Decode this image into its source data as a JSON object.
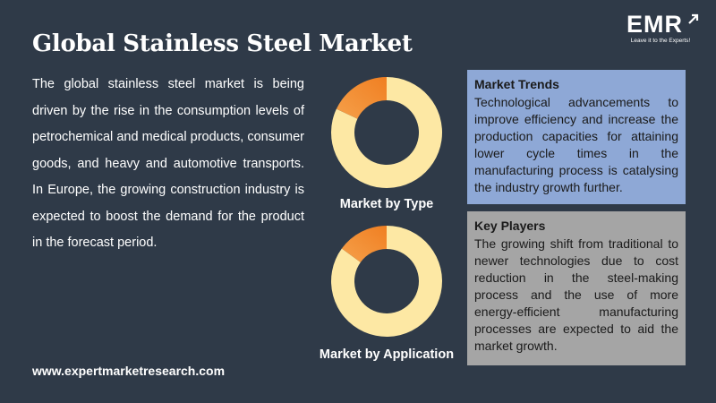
{
  "title": "Global Stainless Steel Market",
  "logo": {
    "text": "EMR",
    "tagline": "Leave it to the Experts!"
  },
  "description": "The global stainless steel market is being driven by the rise in the consumption levels of petrochemical and medical products, consumer goods, and heavy and automotive transports. In Europe, the growing construction industry is expected to boost the demand for the product in the forecast period.",
  "charts": [
    {
      "label": "Market by Type",
      "segments": [
        {
          "value": 82,
          "color": "#fde8a4"
        },
        {
          "value": 18,
          "color": "#f07f22"
        }
      ]
    },
    {
      "label": "Market by Application",
      "segments": [
        {
          "value": 85,
          "color": "#fde8a4"
        },
        {
          "value": 15,
          "color": "#f07f22"
        }
      ]
    }
  ],
  "market_trends": {
    "title": "Market Trends",
    "text": "Technological advancements to improve efficiency and increase the production capacities for attaining lower cycle times in the manufacturing process is catalysing the industry growth further."
  },
  "key_players": {
    "title": "Key Players",
    "text": "The growing shift from traditional to newer technologies due to cost reduction in the steel-making process and the use of more energy-efficient manufacturing processes are expected to aid the market growth."
  },
  "website": "www.expertmarketresearch.com",
  "colors": {
    "background": "#2f3a48",
    "donut_main": "#fde8a4",
    "donut_accent": "#f07f22",
    "trends_card": "#8ea8d6",
    "players_card": "#a5a5a5"
  }
}
